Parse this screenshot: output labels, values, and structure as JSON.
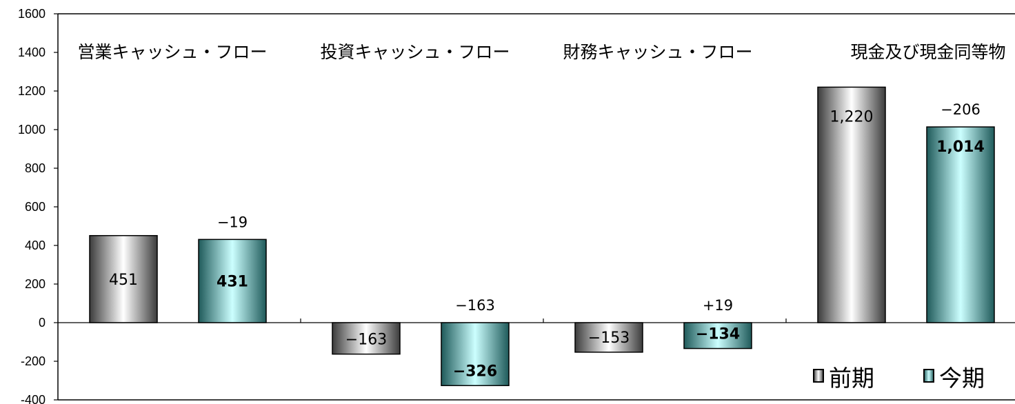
{
  "chart_data": {
    "type": "bar",
    "ylim": [
      -400,
      1600
    ],
    "yticks": [
      "1600",
      "1400",
      "1200",
      "1000",
      "800",
      "600",
      "400",
      "200",
      "0",
      "-200",
      "-400"
    ],
    "ytick_values": [
      1600,
      1400,
      1200,
      1000,
      800,
      600,
      400,
      200,
      0,
      -200,
      -400
    ],
    "categories": [
      "営業キャッシュ・フロー",
      "投資キャッシュ・フロー",
      "財務キャッシュ・フロー",
      "現金及び現金同等物"
    ],
    "series": [
      {
        "name": "前期",
        "values": [
          451,
          -163,
          -153,
          1220
        ],
        "labels": [
          "451",
          "−163",
          "−153",
          "1,220"
        ],
        "color_edge": "#5a5a5a",
        "color_mid": "#ffffff"
      },
      {
        "name": "今期",
        "values": [
          431,
          -326,
          -134,
          1014
        ],
        "labels": [
          "431",
          "−326",
          "−134",
          "1,014"
        ],
        "color_edge": "#2f6f6f",
        "color_mid": "#ccffff"
      }
    ],
    "changes": [
      "−19",
      "−163",
      "+19",
      "−206"
    ],
    "legend": {
      "position": "bottom-right",
      "items": [
        "前期",
        "今期"
      ]
    }
  }
}
